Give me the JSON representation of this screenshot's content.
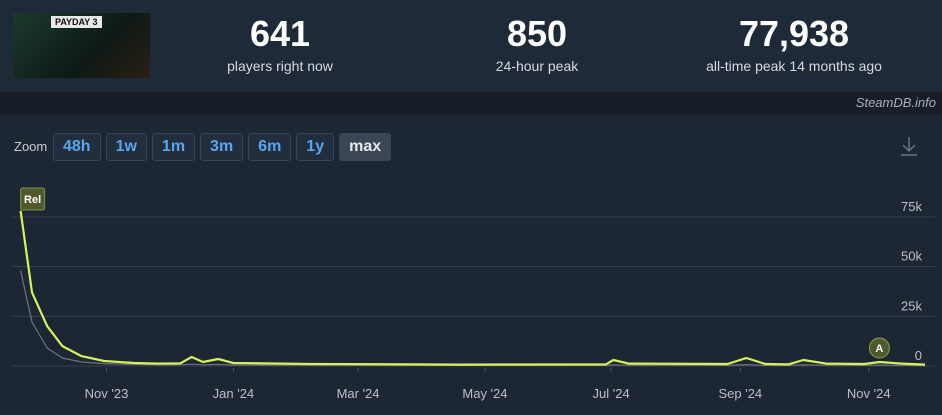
{
  "header": {
    "game_logo": "PAYDAY 3",
    "stats": [
      {
        "value": "641",
        "label": "players right now"
      },
      {
        "value": "850",
        "label": "24-hour peak"
      },
      {
        "value": "77,938",
        "label": "all-time peak 14 months ago"
      }
    ],
    "source": "SteamDB.info"
  },
  "zoom": {
    "label": "Zoom",
    "options": [
      "48h",
      "1w",
      "1m",
      "3m",
      "6m",
      "1y",
      "max"
    ],
    "selected": 6
  },
  "chart_data": {
    "type": "line",
    "x": [
      2023.72,
      2023.735,
      2023.755,
      2023.775,
      2023.8,
      2023.83,
      2023.87,
      2023.9,
      2023.93,
      2023.945,
      2023.96,
      2023.98,
      2024.0,
      2024.1,
      2024.3,
      2024.49,
      2024.5,
      2024.52,
      2024.65,
      2024.675,
      2024.7,
      2024.73,
      2024.75,
      2024.78,
      2024.83,
      2024.85,
      2024.88,
      2024.91
    ],
    "series": [
      {
        "color": "#d4f25a",
        "values": [
          78000,
          37000,
          20000,
          10000,
          5000,
          2500,
          1500,
          1200,
          1300,
          4500,
          2000,
          3500,
          1500,
          1000,
          700,
          800,
          3000,
          1200,
          1000,
          4000,
          1000,
          800,
          3000,
          1200,
          1000,
          2000,
          1200,
          700
        ]
      },
      {
        "color": "#6b7480",
        "values": [
          48000,
          22000,
          9000,
          4000,
          2000,
          1200,
          800,
          600,
          600,
          900,
          600,
          800,
          500,
          400,
          300,
          300,
          600,
          400,
          300,
          700,
          300,
          300,
          600,
          400,
          300,
          500,
          300,
          200
        ]
      }
    ],
    "xlim": [
      2023.71,
      2024.91
    ],
    "xticks": [
      {
        "value": 2023.833,
        "label": "Nov '23"
      },
      {
        "value": 2024.0,
        "label": "Jan '24"
      },
      {
        "value": 2024.164,
        "label": "Mar '24"
      },
      {
        "value": 2024.331,
        "label": "May '24"
      },
      {
        "value": 2024.497,
        "label": "Jul '24"
      },
      {
        "value": 2024.667,
        "label": "Sep '24"
      },
      {
        "value": 2024.836,
        "label": "Nov '24"
      }
    ],
    "ylim": [
      0,
      92000
    ],
    "yticks": [
      0,
      {
        "value": 25000,
        "label": "25k"
      },
      {
        "value": 50000,
        "label": "50k"
      },
      {
        "value": 75000,
        "label": "75k"
      }
    ],
    "grid": true,
    "annotations": [
      {
        "label": "Rel",
        "x": 2023.72
      },
      {
        "label": "A",
        "x": 2024.85
      }
    ]
  }
}
